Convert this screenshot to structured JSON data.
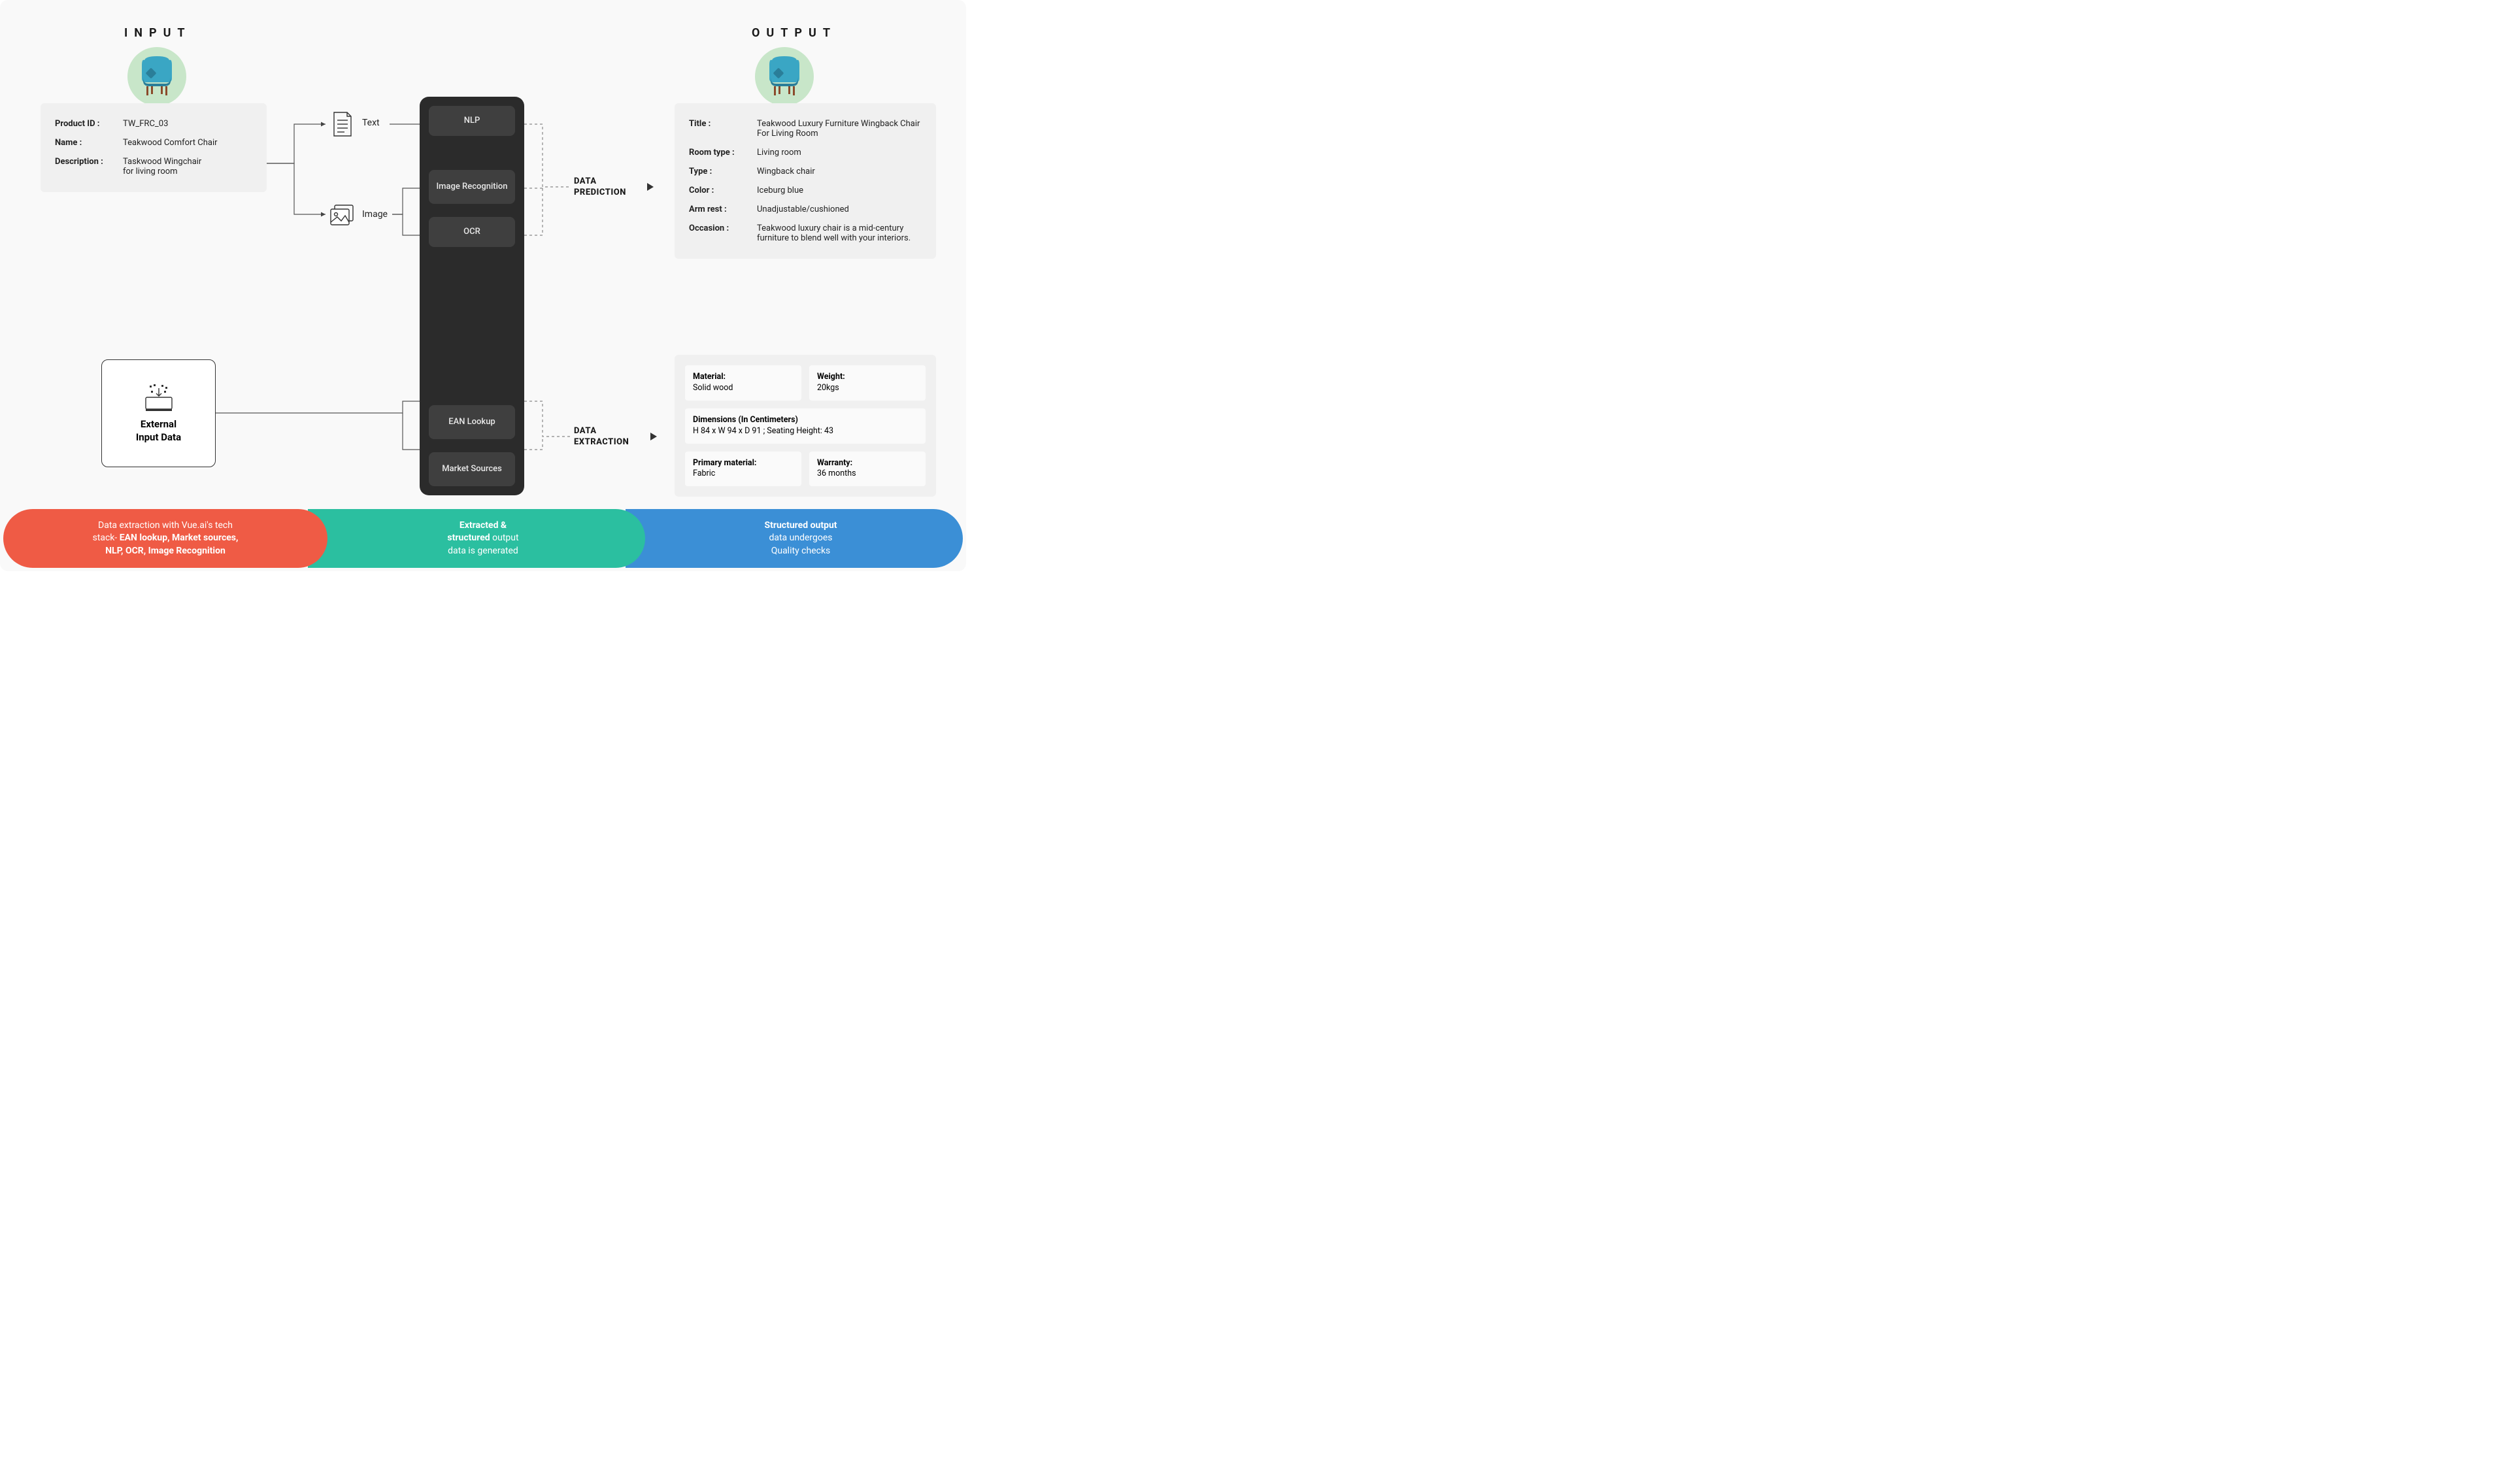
{
  "headings": {
    "input": "INPUT",
    "output": "OUTPUT"
  },
  "input_card": {
    "fields": [
      {
        "k": "Product ID :",
        "v": "TW_FRC_03"
      },
      {
        "k": "Name :",
        "v": "Teakwood Comfort Chair"
      },
      {
        "k": "Description :",
        "v": "Taskwood Wingchair\nfor living room"
      }
    ]
  },
  "mid": {
    "text": "Text",
    "image": "Image"
  },
  "processors": [
    "NLP",
    "Image Recognition",
    "OCR",
    "EAN Lookup",
    "Market Sources"
  ],
  "stages": {
    "prediction": "DATA\nPREDICTION",
    "extraction": "DATA\nEXTRACTION"
  },
  "external": "External\nInput Data",
  "output_card": {
    "fields": [
      {
        "k": "Title :",
        "v": "Teakwood Luxury Furniture Wingback Chair For Living Room"
      },
      {
        "k": "Room type :",
        "v": "Living room"
      },
      {
        "k": "Type :",
        "v": "Wingback chair"
      },
      {
        "k": "Color :",
        "v": "Iceburg blue"
      },
      {
        "k": "Arm rest :",
        "v": "Unadjustable/cushioned"
      },
      {
        "k": "Occasion :",
        "v": "Teakwood luxury chair is a mid-century furniture to blend well with your interiors."
      }
    ]
  },
  "output_chips": {
    "material": {
      "k": "Material:",
      "v": "Solid wood"
    },
    "weight": {
      "k": "Weight:",
      "v": "20kgs"
    },
    "dims": {
      "k": "Dimensions (In Centimeters)",
      "v": "H 84 x W 94 x D 91 ; Seating Height: 43"
    },
    "primary": {
      "k": "Primary material:",
      "v": "Fabric"
    },
    "warranty": {
      "k": "Warranty:",
      "v": "36 months"
    }
  },
  "footer": [
    {
      "html": "Data extraction with Vue.ai's tech<br>stack- <b>EAN lookup, Market sources,<br>NLP, OCR, Image Recognition</b>"
    },
    {
      "html": "<b>Extracted &amp;<br>structured</b> output<br>data is generated"
    },
    {
      "html": "<b>Structured output</b><br>data undergoes<br>Quality checks"
    }
  ],
  "colors": {
    "badge_bg": "#c8e6c9",
    "chair_body": "#3aa6c4",
    "chair_dark": "#2a7e99",
    "chair_leg": "#8b4a2b",
    "proc_bg": "#2b2b2b",
    "proc_item": "#3f3f3f",
    "card_bg": "#f0f0f0",
    "chip_bg": "#fafafa",
    "pill1": "#ef5b45",
    "pill2": "#2bbfa0",
    "pill3": "#3b8fd6",
    "line": "#555",
    "dashed": "#888"
  }
}
